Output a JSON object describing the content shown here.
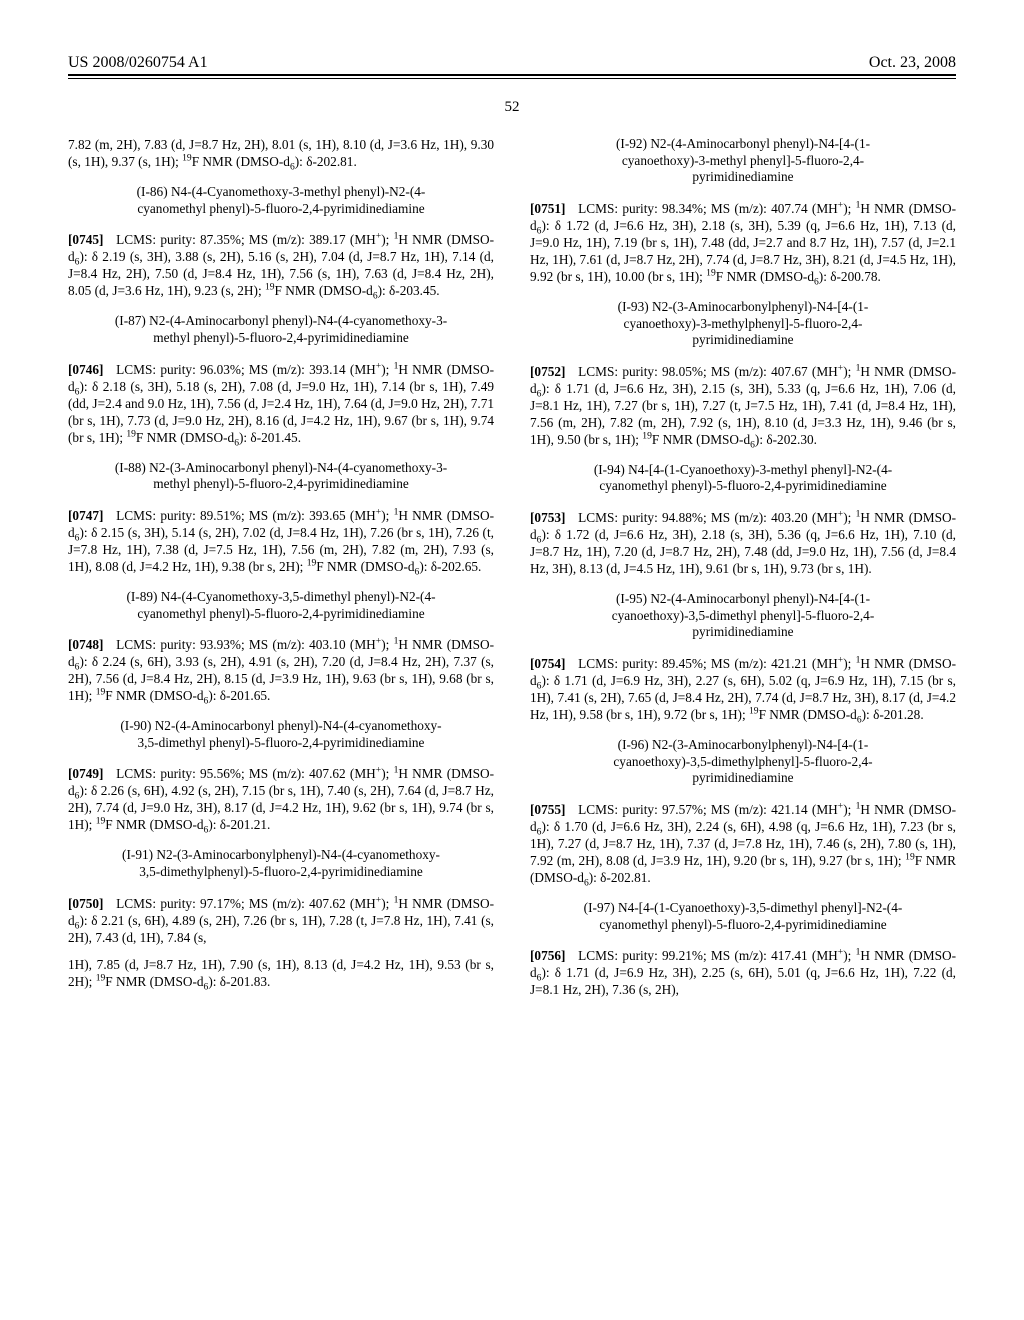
{
  "header": {
    "left": "US 2008/0260754 A1",
    "right": "Oct. 23, 2008"
  },
  "pagenum": "52",
  "col1": {
    "p0": "7.82 (m, 2H), 7.83 (d, J=8.7 Hz, 2H), 8.01 (s, 1H), 8.10 (d, J=3.6 Hz, 1H), 9.30 (s, 1H), 9.37 (s, 1H); ",
    "p0f": "F NMR (DMSO-d",
    "p0end": "): δ-202.81.",
    "t86": "(I-86) N4-(4-Cyanomethoxy-3-methyl phenyl)-N2-(4-cyanomethyl phenyl)-5-fluoro-2,4-pyrimidinediamine",
    "p86a": "LCMS: purity: 87.35%; MS (m/z): 389.17 (MH",
    "p86b": "H NMR (DMSO-d",
    "p86c": "): δ 2.19 (s, 3H), 3.88 (s, 2H), 5.16 (s, 2H), 7.04 (d, J=8.7 Hz, 1H), 7.14 (d, J=8.4 Hz, 2H), 7.50 (d, J=8.4 Hz, 1H), 7.56 (s, 1H), 7.63 (d, J=8.4 Hz, 2H), 8.05 (d, J=3.6 Hz, 1H), 9.23 (s, 2H); ",
    "p86f": "F NMR (DMSO-d",
    "p86end": "): δ-203.45.",
    "t87": "(I-87) N2-(4-Aminocarbonyl phenyl)-N4-(4-cyanomethoxy-3-methyl phenyl)-5-fluoro-2,4-pyrimidinediamine",
    "p87a": "LCMS: purity: 96.03%; MS (m/z): 393.14 (MH",
    "p87b": "H NMR (DMSO-d",
    "p87c": "): δ 2.18 (s, 3H), 5.18 (s, 2H), 7.08 (d, J=9.0 Hz, 1H), 7.14 (br s, 1H), 7.49 (dd, J=2.4 and 9.0 Hz, 1H), 7.56 (d, J=2.4 Hz, 1H), 7.64 (d, J=9.0 Hz, 2H), 7.71 (br s, 1H), 7.73 (d, J=9.0 Hz, 2H), 8.16 (d, J=4.2 Hz, 1H), 9.67 (br s, 1H), 9.74 (br s, 1H); ",
    "p87f": "F NMR (DMSO-d",
    "p87end": "): δ-201.45.",
    "t88": "(I-88) N2-(3-Aminocarbonyl phenyl)-N4-(4-cyanomethoxy-3-methyl phenyl)-5-fluoro-2,4-pyrimidinediamine",
    "p88a": "LCMS: purity: 89.51%; MS (m/z): 393.65 (MH",
    "p88b": "H NMR (DMSO-d",
    "p88c": "): δ 2.15 (s, 3H), 5.14 (s, 2H), 7.02 (d, J=8.4 Hz, 1H), 7.26 (br s, 1H), 7.26 (t, J=7.8 Hz, 1H), 7.38 (d, J=7.5 Hz, 1H), 7.56 (m, 2H), 7.82 (m, 2H), 7.93 (s, 1H), 8.08 (d, J=4.2 Hz, 1H), 9.38 (br s, 2H); ",
    "p88f": "F NMR (DMSO-d",
    "p88end": "): δ-202.65.",
    "t89": "(I-89) N4-(4-Cyanomethoxy-3,5-dimethyl phenyl)-N2-(4-cyanomethyl phenyl)-5-fluoro-2,4-pyrimidinediamine",
    "p89a": "LCMS: purity: 93.93%; MS (m/z): 403.10 (MH",
    "p89b": "H NMR (DMSO-d",
    "p89c": "): δ 2.24 (s, 6H), 3.93 (s, 2H), 4.91 (s, 2H), 7.20 (d, J=8.4 Hz, 2H), 7.37 (s, 2H), 7.56 (d, J=8.4 Hz, 2H), 8.15 (d, J=3.9 Hz, 1H), 9.63 (br s, 1H), 9.68 (br s, 1H); ",
    "p89f": "F NMR (DMSO-d",
    "p89end": "): δ-201.65.",
    "t90": "(I-90) N2-(4-Aminocarbonyl phenyl)-N4-(4-cyanomethoxy-3,5-dimethyl phenyl)-5-fluoro-2,4-pyrimidinediamine",
    "p90a": "LCMS: purity: 95.56%; MS (m/z): 407.62 (MH",
    "p90b": "H NMR (DMSO-d",
    "p90c": "): δ 2.26 (s, 6H), 4.92 (s, 2H), 7.15 (br s, 1H), 7.40 (s, 2H), 7.64 (d, J=8.7 Hz, 2H), 7.74 (d, J=9.0 Hz, 3H), 8.17 (d, J=4.2 Hz, 1H), 9.62 (br s, 1H), 9.74 (br s, 1H); ",
    "p90f": "F NMR (DMSO-d",
    "p90end": "): δ-201.21.",
    "t91": "(I-91) N2-(3-Aminocarbonylphenyl)-N4-(4-cyanomethoxy-3,5-dimethylphenyl)-5-fluoro-2,4-pyrimidinediamine",
    "p91a": "LCMS: purity: 97.17%; MS (m/z): 407.62 (MH",
    "p91b": "H NMR (DMSO-d",
    "p91c": "): δ 2.21 (s, 6H), 4.89 (s, 2H), 7.26 (br s, 1H), 7.28 (t, J=7.8 Hz, 1H), 7.41 (s, 2H), 7.43 (d, 1H), 7.84 (s,"
  },
  "col2": {
    "p91d": "1H), 7.85 (d, J=8.7 Hz, 1H), 7.90 (s, 1H), 8.13 (d, J=4.2 Hz, 1H), 9.53 (br s, 2H); ",
    "p91f": "F NMR (DMSO-d",
    "p91end": "): δ-201.83.",
    "t92": "(I-92) N2-(4-Aminocarbonyl phenyl)-N4-[4-(1-cyanoethoxy)-3-methyl phenyl]-5-fluoro-2,4-pyrimidinediamine",
    "p92a": "LCMS: purity: 98.34%; MS (m/z): 407.74 (MH",
    "p92b": "H NMR (DMSO-d",
    "p92c": "): δ 1.72 (d, J=6.6 Hz, 3H), 2.18 (s, 3H), 5.39 (q, J=6.6 Hz, 1H), 7.13 (d, J=9.0 Hz, 1H), 7.19 (br s, 1H), 7.48 (dd, J=2.7 and 8.7 Hz, 1H), 7.57 (d, J=2.1 Hz, 1H), 7.61 (d, J=8.7 Hz, 2H), 7.74 (d, J=8.7 Hz, 3H), 8.21 (d, J=4.5 Hz, 1H), 9.92 (br s, 1H), 10.00 (br s, 1H); ",
    "p92f": "F NMR (DMSO-d",
    "p92end": "): δ-200.78.",
    "t93": "(I-93) N2-(3-Aminocarbonylphenyl)-N4-[4-(1-cyanoethoxy)-3-methylphenyl]-5-fluoro-2,4-pyrimidinediamine",
    "p93a": "LCMS: purity: 98.05%; MS (m/z): 407.67 (MH",
    "p93b": "H NMR (DMSO-d",
    "p93c": "): δ 1.71 (d, J=6.6 Hz, 3H), 2.15 (s, 3H), 5.33 (q, J=6.6 Hz, 1H), 7.06 (d, J=8.1 Hz, 1H), 7.27 (br s, 1H), 7.27 (t, J=7.5 Hz, 1H), 7.41 (d, J=8.4 Hz, 1H), 7.56 (m, 2H), 7.82 (m, 2H), 7.92 (s, 1H), 8.10 (d, J=3.3 Hz, 1H), 9.46 (br s, 1H), 9.50 (br s, 1H); ",
    "p93f": "F NMR (DMSO-d",
    "p93end": "): δ-202.30.",
    "t94": "(I-94) N4-[4-(1-Cyanoethoxy)-3-methyl phenyl]-N2-(4-cyanomethyl phenyl)-5-fluoro-2,4-pyrimidinediamine",
    "p94a": "LCMS: purity: 94.88%; MS (m/z): 403.20 (MH",
    "p94b": "H NMR (DMSO-d",
    "p94c": "): δ 1.72 (d, J=6.6 Hz, 3H), 2.18 (s, 3H), 5.36 (q, J=6.6 Hz, 1H), 7.10 (d, J=8.7 Hz, 1H), 7.20 (d, J=8.7 Hz, 2H), 7.48 (dd, J=9.0 Hz, 1H), 7.56 (d, J=8.4 Hz, 3H), 8.13 (d, J=4.5 Hz, 1H), 9.61 (br s, 1H), 9.73 (br s, 1H).",
    "t95": "(I-95) N2-(4-Aminocarbonyl phenyl)-N4-[4-(1-cyanoethoxy)-3,5-dimethyl phenyl]-5-fluoro-2,4-pyrimidinediamine",
    "p95a": "LCMS: purity: 89.45%; MS (m/z): 421.21 (MH",
    "p95b": "H NMR (DMSO-d",
    "p95c": "): δ 1.71 (d, J=6.9 Hz, 3H), 2.27 (s, 6H), 5.02 (q, J=6.9 Hz, 1H), 7.15 (br s, 1H), 7.41 (s, 2H), 7.65 (d, J=8.4 Hz, 2H), 7.74 (d, J=8.7 Hz, 3H), 8.17 (d, J=4.2 Hz, 1H), 9.58 (br s, 1H), 9.72 (br s, 1H); ",
    "p95f": "F NMR (DMSO-d",
    "p95end": "): δ-201.28.",
    "t96": "(I-96) N2-(3-Aminocarbonylphenyl)-N4-[4-(1-cyanoethoxy)-3,5-dimethylphenyl]-5-fluoro-2,4-pyrimidinediamine",
    "p96a": "LCMS: purity: 97.57%; MS (m/z): 421.14 (MH",
    "p96b": "H NMR (DMSO-d",
    "p96c": "): δ 1.70 (d, J=6.6 Hz, 3H), 2.24 (s, 6H), 4.98 (q, J=6.6 Hz, 1H), 7.23 (br s, 1H), 7.27 (d, J=8.7 Hz, 1H), 7.37 (d, J=7.8 Hz, 1H), 7.46 (s, 2H), 7.80 (s, 1H), 7.92 (m, 2H), 8.08 (d, J=3.9 Hz, 1H), 9.20 (br s, 1H), 9.27 (br s, 1H); ",
    "p96f": "F NMR (DMSO-d",
    "p96end": "): δ-202.81.",
    "t97": "(I-97) N4-[4-(1-Cyanoethoxy)-3,5-dimethyl phenyl]-N2-(4-cyanomethyl phenyl)-5-fluoro-2,4-pyrimidinediamine",
    "p97a": "LCMS: purity: 99.21%; MS (m/z): 417.41 (MH",
    "p97b": "H NMR (DMSO-d",
    "p97c": "): δ 1.71 (d, J=6.9 Hz, 3H), 2.25 (s, 6H), 5.01 (q, J=6.6 Hz, 1H), 7.22 (d, J=8.1 Hz, 2H), 7.36 (s, 2H),"
  },
  "pnums": {
    "n0745": "[0745]",
    "n0746": "[0746]",
    "n0747": "[0747]",
    "n0748": "[0748]",
    "n0749": "[0749]",
    "n0750": "[0750]",
    "n0751": "[0751]",
    "n0752": "[0752]",
    "n0753": "[0753]",
    "n0754": "[0754]",
    "n0755": "[0755]",
    "n0756": "[0756]"
  }
}
